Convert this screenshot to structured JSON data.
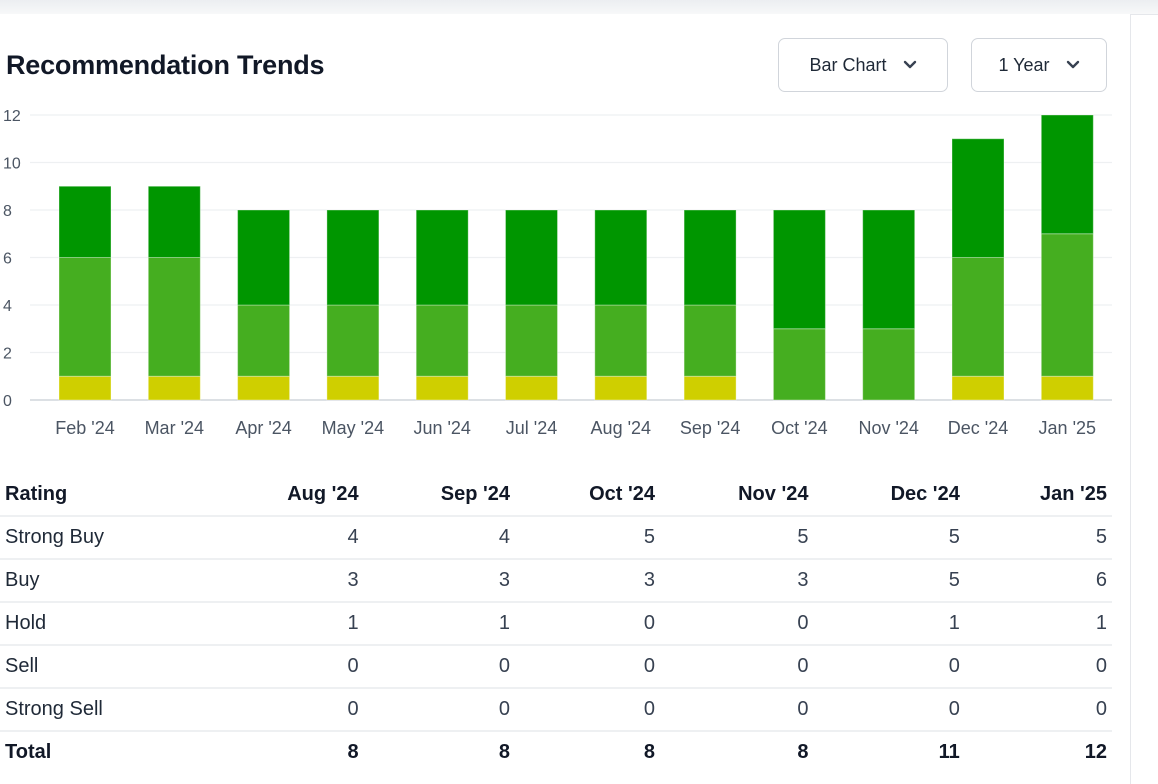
{
  "header": {
    "title": "Recommendation Trends",
    "chart_type_dropdown": "Bar Chart",
    "range_dropdown": "1 Year"
  },
  "colors": {
    "strong_buy": "#009600",
    "buy": "#45ae20",
    "hold": "#cfcf00",
    "sell": "#f97316",
    "strong_sell": "#dc2626"
  },
  "chart_data": {
    "type": "bar",
    "stacked": true,
    "title": "Recommendation Trends",
    "xlabel": "",
    "ylabel": "",
    "ylim": [
      0,
      12
    ],
    "yticks": [
      0,
      2,
      4,
      6,
      8,
      10,
      12
    ],
    "grid": true,
    "legend": "none",
    "categories": [
      "Feb '24",
      "Mar '24",
      "Apr '24",
      "May '24",
      "Jun '24",
      "Jul '24",
      "Aug '24",
      "Sep '24",
      "Oct '24",
      "Nov '24",
      "Dec '24",
      "Jan '25"
    ],
    "series": [
      {
        "name": "Strong Sell",
        "key": "strong_sell",
        "values": [
          0,
          0,
          0,
          0,
          0,
          0,
          0,
          0,
          0,
          0,
          0,
          0
        ]
      },
      {
        "name": "Sell",
        "key": "sell",
        "values": [
          0,
          0,
          0,
          0,
          0,
          0,
          0,
          0,
          0,
          0,
          0,
          0
        ]
      },
      {
        "name": "Hold",
        "key": "hold",
        "values": [
          1,
          1,
          1,
          1,
          1,
          1,
          1,
          1,
          0,
          0,
          1,
          1
        ]
      },
      {
        "name": "Buy",
        "key": "buy",
        "values": [
          5,
          5,
          3,
          3,
          3,
          3,
          3,
          3,
          3,
          3,
          5,
          6
        ]
      },
      {
        "name": "Strong Buy",
        "key": "strong_buy",
        "values": [
          3,
          3,
          4,
          4,
          4,
          4,
          4,
          4,
          5,
          5,
          5,
          5
        ]
      }
    ]
  },
  "table": {
    "headers": [
      "Rating",
      "Aug '24",
      "Sep '24",
      "Oct '24",
      "Nov '24",
      "Dec '24",
      "Jan '25"
    ],
    "rows": [
      [
        "Strong Buy",
        "4",
        "4",
        "5",
        "5",
        "5",
        "5"
      ],
      [
        "Buy",
        "3",
        "3",
        "3",
        "3",
        "5",
        "6"
      ],
      [
        "Hold",
        "1",
        "1",
        "0",
        "0",
        "1",
        "1"
      ],
      [
        "Sell",
        "0",
        "0",
        "0",
        "0",
        "0",
        "0"
      ],
      [
        "Strong Sell",
        "0",
        "0",
        "0",
        "0",
        "0",
        "0"
      ]
    ],
    "total": [
      "Total",
      "8",
      "8",
      "8",
      "8",
      "11",
      "12"
    ]
  }
}
